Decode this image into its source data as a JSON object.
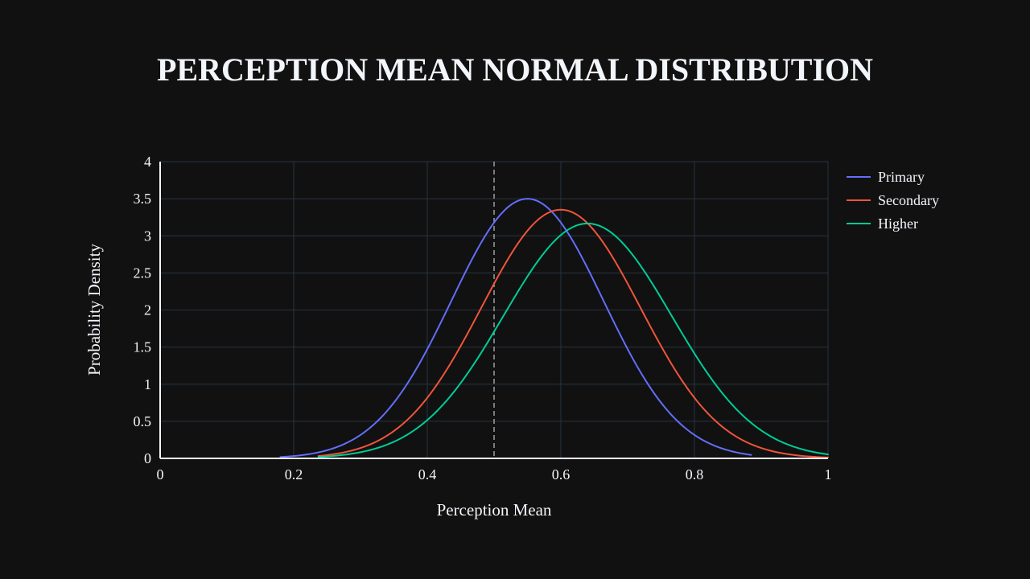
{
  "chart_data": {
    "type": "line",
    "title": "PERCEPTION MEAN NORMAL DISTRIBUTION",
    "xlabel": "Perception Mean",
    "ylabel": "Probability Density",
    "xlim": [
      0,
      1
    ],
    "ylim": [
      0,
      4
    ],
    "x_ticks": [
      "0",
      "0.2",
      "0.4",
      "0.6",
      "0.8",
      "1"
    ],
    "x_tick_values": [
      0,
      0.2,
      0.4,
      0.6,
      0.8,
      1
    ],
    "y_ticks": [
      "0",
      "0.5",
      "1",
      "1.5",
      "2",
      "2.5",
      "3",
      "3.5",
      "4"
    ],
    "y_tick_values": [
      0,
      0.5,
      1,
      1.5,
      2,
      2.5,
      3,
      3.5,
      4
    ],
    "grid": true,
    "legend_position": "top-right",
    "reference_line": {
      "x": 0.5,
      "style": "dashed",
      "color": "#a0a0a0"
    },
    "series": [
      {
        "name": "Primary",
        "color": "#636efa",
        "mean": 0.55,
        "std": 0.114,
        "x_range": [
          0.18,
          0.885
        ]
      },
      {
        "name": "Secondary",
        "color": "#ef553b",
        "mean": 0.6,
        "std": 0.119,
        "x_range": [
          0.237,
          1.0
        ]
      },
      {
        "name": "Higher",
        "color": "#00cc96",
        "mean": 0.64,
        "std": 0.126,
        "x_range": [
          0.237,
          1.0
        ]
      }
    ]
  }
}
